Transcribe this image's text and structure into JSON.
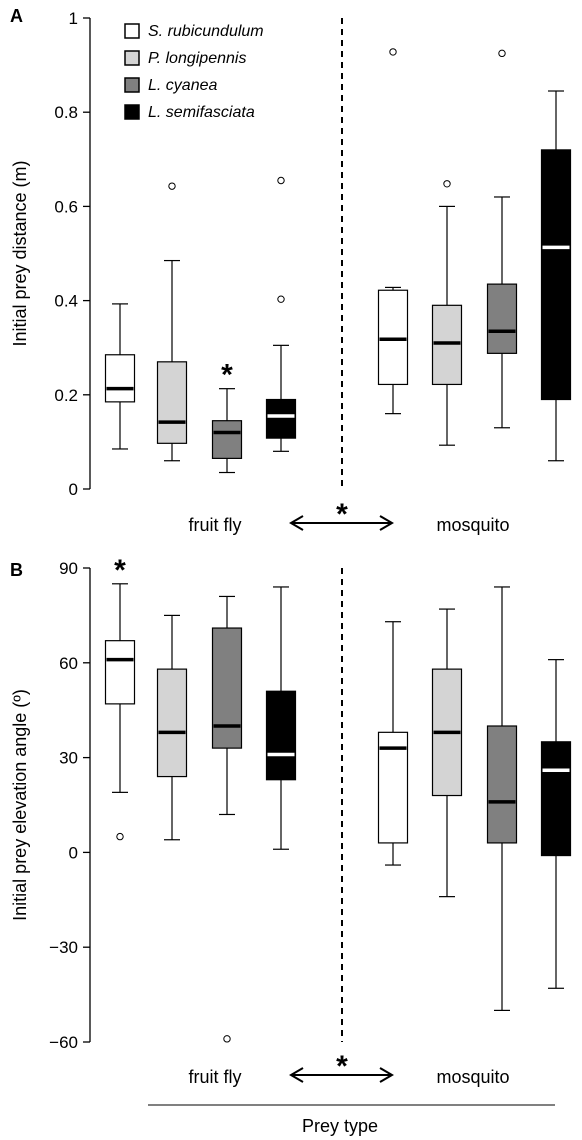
{
  "chart_data": [
    {
      "panel": "A",
      "type": "box",
      "ylabel": "Initial prey distance (m)",
      "ylim": [
        0,
        1
      ],
      "yticks": [
        "0",
        "0.2",
        "0.4",
        "0.6",
        "0.8",
        "1"
      ],
      "ytick_values": [
        0,
        0.2,
        0.4,
        0.6,
        0.8,
        1
      ],
      "groups": [
        "fruit fly",
        "mosquito"
      ],
      "group_significance": "*",
      "legend": [
        {
          "name": "S. rubicundulum",
          "color": "#ffffff"
        },
        {
          "name": "P. longipennis",
          "color": "#d4d4d4"
        },
        {
          "name": "L. cyanea",
          "color": "#808080"
        },
        {
          "name": "L. semifasciata",
          "color": "#000000"
        }
      ],
      "boxes": [
        {
          "group": "fruit fly",
          "species": 0,
          "whisker_low": 0.085,
          "q1": 0.185,
          "median": 0.213,
          "q3": 0.285,
          "whisker_high": 0.393,
          "outliers": [],
          "sig": ""
        },
        {
          "group": "fruit fly",
          "species": 1,
          "whisker_low": 0.06,
          "q1": 0.097,
          "median": 0.142,
          "q3": 0.27,
          "whisker_high": 0.485,
          "outliers": [
            0.643
          ],
          "sig": ""
        },
        {
          "group": "fruit fly",
          "species": 2,
          "whisker_low": 0.035,
          "q1": 0.065,
          "median": 0.12,
          "q3": 0.145,
          "whisker_high": 0.213,
          "outliers": [],
          "sig": "*"
        },
        {
          "group": "fruit fly",
          "species": 3,
          "whisker_low": 0.08,
          "q1": 0.108,
          "median": 0.155,
          "q3": 0.19,
          "whisker_high": 0.305,
          "outliers": [
            0.403,
            0.655
          ],
          "sig": ""
        },
        {
          "group": "mosquito",
          "species": 0,
          "whisker_low": 0.16,
          "q1": 0.222,
          "median": 0.318,
          "q3": 0.422,
          "whisker_high": 0.428,
          "outliers": [
            0.928
          ],
          "sig": ""
        },
        {
          "group": "mosquito",
          "species": 1,
          "whisker_low": 0.093,
          "q1": 0.222,
          "median": 0.31,
          "q3": 0.39,
          "whisker_high": 0.6,
          "outliers": [
            0.648
          ],
          "sig": ""
        },
        {
          "group": "mosquito",
          "species": 2,
          "whisker_low": 0.13,
          "q1": 0.288,
          "median": 0.335,
          "q3": 0.435,
          "whisker_high": 0.62,
          "outliers": [
            0.925
          ],
          "sig": ""
        },
        {
          "group": "mosquito",
          "species": 3,
          "whisker_low": 0.06,
          "q1": 0.19,
          "median": 0.513,
          "q3": 0.72,
          "whisker_high": 0.845,
          "outliers": [],
          "sig": ""
        }
      ]
    },
    {
      "panel": "B",
      "type": "box",
      "ylabel": "Initial prey elevation angle (º)",
      "ylim": [
        -60,
        90
      ],
      "yticks": [
        "90",
        "60",
        "30",
        "0",
        "−30",
        "−60"
      ],
      "ytick_values": [
        90,
        60,
        30,
        0,
        -30,
        -60
      ],
      "groups": [
        "fruit fly",
        "mosquito"
      ],
      "group_significance": "*",
      "xlabel": "Prey type",
      "boxes": [
        {
          "group": "fruit fly",
          "species": 0,
          "whisker_low": 19,
          "q1": 47,
          "median": 61,
          "q3": 67,
          "whisker_high": 85,
          "outliers": [
            5
          ],
          "sig": "*"
        },
        {
          "group": "fruit fly",
          "species": 1,
          "whisker_low": 4,
          "q1": 24,
          "median": 38,
          "q3": 58,
          "whisker_high": 75,
          "outliers": [],
          "sig": ""
        },
        {
          "group": "fruit fly",
          "species": 2,
          "whisker_low": 12,
          "q1": 33,
          "median": 40,
          "q3": 71,
          "whisker_high": 81,
          "outliers": [
            -59
          ],
          "sig": ""
        },
        {
          "group": "fruit fly",
          "species": 3,
          "whisker_low": 1,
          "q1": 23,
          "median": 31,
          "q3": 51,
          "whisker_high": 84,
          "outliers": [],
          "sig": ""
        },
        {
          "group": "mosquito",
          "species": 0,
          "whisker_low": -4,
          "q1": 3,
          "median": 33,
          "q3": 38,
          "whisker_high": 73,
          "outliers": [],
          "sig": ""
        },
        {
          "group": "mosquito",
          "species": 1,
          "whisker_low": -14,
          "q1": 18,
          "median": 38,
          "q3": 58,
          "whisker_high": 77,
          "outliers": [],
          "sig": ""
        },
        {
          "group": "mosquito",
          "species": 2,
          "whisker_low": -50,
          "q1": 3,
          "median": 16,
          "q3": 40,
          "whisker_high": 84,
          "outliers": [],
          "sig": ""
        },
        {
          "group": "mosquito",
          "species": 3,
          "whisker_low": -43,
          "q1": -1,
          "median": 26,
          "q3": 35,
          "whisker_high": 61,
          "outliers": [],
          "sig": ""
        }
      ]
    }
  ]
}
